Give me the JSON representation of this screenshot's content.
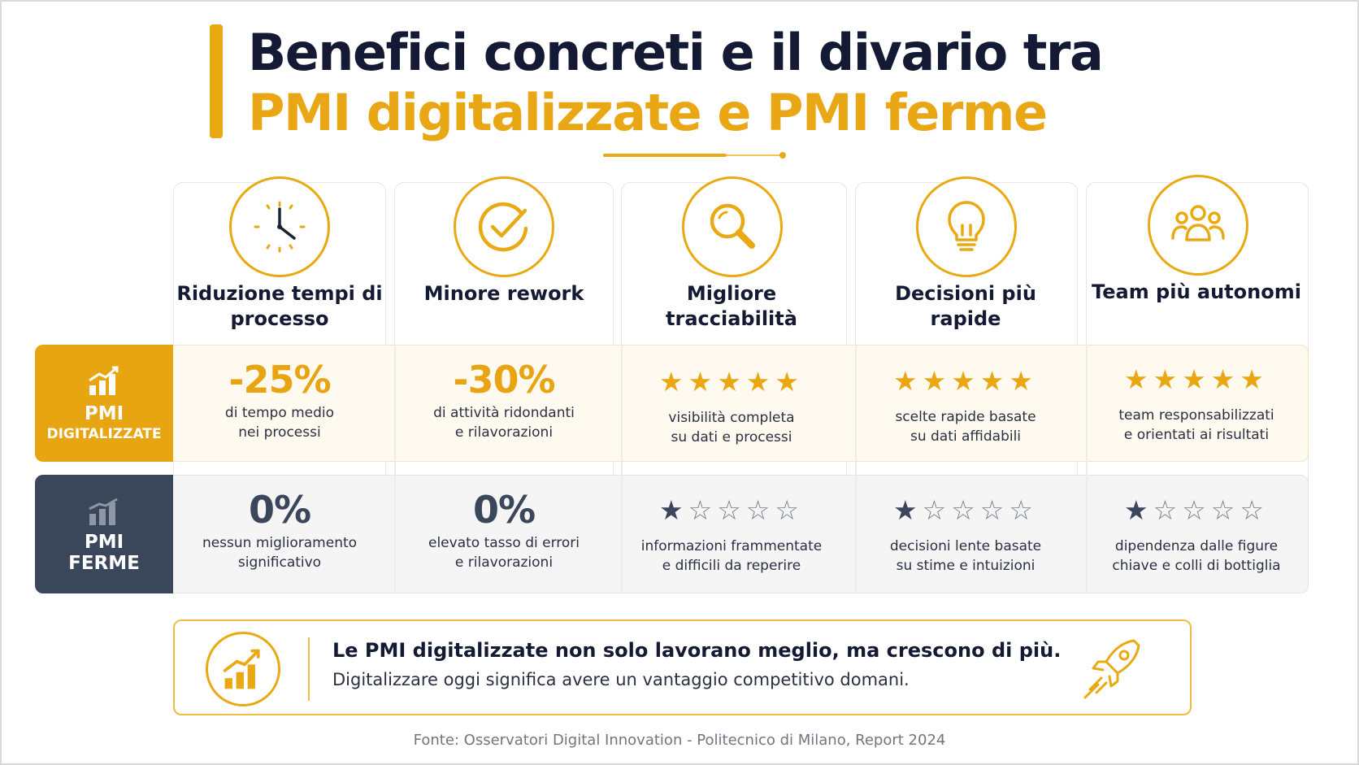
{
  "title": {
    "line1": "Benefici concreti e il divario tra",
    "line2": "PMI digitalizzate e PMI ferme"
  },
  "colors": {
    "accent": "#e9a912",
    "dark": "#3a4659",
    "title_dark": "#141a33"
  },
  "columns": [
    {
      "icon": "clock-icon",
      "title": "Riduzione tempi di processo"
    },
    {
      "icon": "check-circle-icon",
      "title": "Minore rework"
    },
    {
      "icon": "magnifier-icon",
      "title": "Migliore tracciabilità"
    },
    {
      "icon": "lightbulb-icon",
      "title": "Decisioni più rapide"
    },
    {
      "icon": "team-icon",
      "title": "Team più autonomi"
    }
  ],
  "rows": {
    "digital": {
      "label_line1": "PMI",
      "label_line2": "DIGITALIZZATE",
      "icon": "bar-chart-growth-icon",
      "cells": [
        {
          "value": "-25%",
          "desc1": "di tempo medio",
          "desc2": "nei processi"
        },
        {
          "value": "-30%",
          "desc1": "di attività ridondanti",
          "desc2": "e rilavorazioni"
        },
        {
          "rating": 5,
          "max": 5,
          "desc1": "visibilità completa",
          "desc2": "su dati e processi"
        },
        {
          "rating": 5,
          "max": 5,
          "desc1": "scelte rapide basate",
          "desc2": "su dati affidabili"
        },
        {
          "rating": 5,
          "max": 5,
          "desc1": "team responsabilizzati",
          "desc2": "e orientati ai risultati"
        }
      ]
    },
    "stopped": {
      "label_line1": "PMI",
      "label_line2": "FERME",
      "icon": "bar-chart-flat-icon",
      "cells": [
        {
          "value": "0%",
          "desc1": "nessun miglioramento",
          "desc2": "significativo"
        },
        {
          "value": "0%",
          "desc1": "elevato tasso di errori",
          "desc2": "e rilavorazioni"
        },
        {
          "rating": 1,
          "max": 5,
          "desc1": "informazioni frammentate",
          "desc2": "e difficili da reperire"
        },
        {
          "rating": 1,
          "max": 5,
          "desc1": "decisioni lente basate",
          "desc2": "su stime e intuizioni"
        },
        {
          "rating": 1,
          "max": 5,
          "desc1": "dipendenza dalle figure",
          "desc2": "chiave e colli di bottiglia"
        }
      ]
    }
  },
  "callout": {
    "icon": "growth-chart-icon",
    "line1": "Le PMI digitalizzate non solo lavorano meglio, ma crescono di più.",
    "line2": "Digitalizzare oggi significa avere un vantaggio competitivo domani.",
    "decor_icon": "rocket-icon"
  },
  "source": "Fonte: Osservatori Digital Innovation - Politecnico di Milano, Report 2024"
}
